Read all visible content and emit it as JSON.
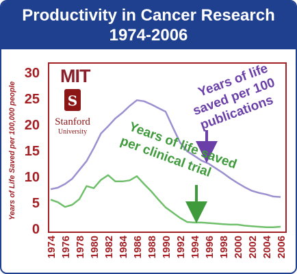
{
  "header": {
    "title_line1": "Productivity in Cancer Research",
    "title_line2": "1974-2006"
  },
  "logos": {
    "mit_text": "MIT",
    "stanford_name": "Stanford",
    "stanford_sub": "University",
    "stanford_letter": "S"
  },
  "colors": {
    "header_bg": "#1f3f8f",
    "axis": "#a31f24",
    "publications_line": "#9c8fd0",
    "publications_text": "#6a3fa8",
    "trial_line": "#6fbf6a",
    "trial_text": "#3f9a3c"
  },
  "chart_data": {
    "type": "line",
    "title": "Productivity in Cancer Research",
    "subtitle": "1974-2006",
    "xlabel": "",
    "ylabel": "Years of Life Saved per 100,000 people",
    "ylim": [
      0,
      30
    ],
    "xlim": [
      1974,
      2006
    ],
    "y_ticks": [
      0,
      5,
      10,
      15,
      20,
      25,
      30
    ],
    "x_ticks": [
      1974,
      1976,
      1978,
      1980,
      1982,
      1984,
      1986,
      1988,
      1990,
      1992,
      1994,
      1996,
      1998,
      2000,
      2002,
      2004,
      2006
    ],
    "grid": false,
    "series": [
      {
        "name": "Years of life saved per 100 publications",
        "color": "#9c8fd0",
        "x": [
          1974,
          1975,
          1976,
          1977,
          1978,
          1979,
          1980,
          1981,
          1982,
          1983,
          1984,
          1985,
          1986,
          1987,
          1988,
          1989,
          1990,
          1991,
          1992,
          1993,
          1994,
          1995,
          1996,
          1997,
          1998,
          1999,
          2000,
          2001,
          2002,
          2003,
          2004,
          2005,
          2006
        ],
        "values": [
          7.6,
          7.9,
          8.6,
          9.6,
          11.3,
          13.0,
          15.5,
          18.3,
          19.7,
          21.2,
          22.3,
          23.6,
          24.7,
          24.5,
          23.9,
          23.2,
          22.5,
          19.5,
          16.6,
          14.9,
          14.0,
          13.1,
          12.5,
          11.6,
          10.7,
          9.7,
          8.8,
          8.0,
          7.3,
          6.9,
          6.6,
          6.2,
          6.1
        ]
      },
      {
        "name": "Years of life saved per clinical trial",
        "color": "#6fbf6a",
        "x": [
          1974,
          1975,
          1976,
          1977,
          1978,
          1979,
          1980,
          1981,
          1982,
          1983,
          1984,
          1985,
          1986,
          1987,
          1988,
          1989,
          1990,
          1991,
          1992,
          1993,
          1994,
          1995,
          1996,
          1997,
          1998,
          1999,
          2000,
          2001,
          2002,
          2003,
          2004,
          2005,
          2006
        ],
        "values": [
          5.6,
          5.1,
          4.2,
          4.6,
          5.7,
          8.2,
          7.8,
          9.4,
          10.3,
          9.1,
          9.1,
          9.3,
          10.1,
          8.6,
          7.2,
          5.6,
          4.1,
          3.1,
          2.1,
          1.3,
          1.2,
          1.2,
          1.1,
          1.0,
          0.9,
          0.8,
          0.8,
          0.6,
          0.5,
          0.4,
          0.3,
          0.3,
          0.4
        ]
      }
    ],
    "annotations": [
      {
        "text_lines": [
          "Years of life",
          "saved per 100",
          "publications"
        ]
      },
      {
        "text_lines": [
          "Years of life saved",
          "per clinical trial"
        ]
      }
    ]
  }
}
